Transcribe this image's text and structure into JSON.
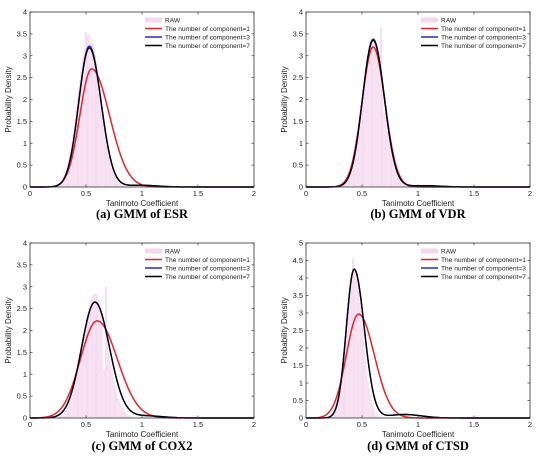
{
  "chart_data": [
    {
      "type": "area",
      "caption": "(a) GMM of ESR",
      "xlabel": "Tanimoto Coefficient",
      "ylabel": "Probability Density",
      "xlim": [
        0,
        2
      ],
      "ylim": [
        0,
        4
      ],
      "xticks": [
        "0",
        "0.5",
        "1",
        "1.5",
        "2"
      ],
      "yticks": [
        "0",
        "0.5",
        "1",
        "1.5",
        "2",
        "2.5",
        "3",
        "3.5",
        "4"
      ],
      "legend_position": "top-right",
      "raw": {
        "name": "RAW",
        "center": 0.53,
        "sigma": 0.1,
        "peak": 3.5,
        "spikes": [
          [
            0.5,
            3.55
          ],
          [
            0.55,
            3.3
          ]
        ]
      },
      "series": [
        {
          "name": "The number of component=1",
          "color": "#e8222a",
          "peak_x": 0.55,
          "peak_y": 2.7,
          "sigma_left": 0.105,
          "sigma_right": 0.16,
          "tail": 0
        },
        {
          "name": "The number of component=3",
          "color": "#1f2ccf",
          "peak_x": 0.53,
          "peak_y": 3.22,
          "sigma_left": 0.095,
          "sigma_right": 0.105,
          "tail": 0.04
        },
        {
          "name": "The number of component=7",
          "color": "#000000",
          "peak_x": 0.53,
          "peak_y": 3.18,
          "sigma_left": 0.095,
          "sigma_right": 0.105,
          "tail": 0.04
        }
      ]
    },
    {
      "type": "area",
      "caption": "(b) GMM of VDR",
      "xlabel": "Tanimoto Coefficient",
      "ylabel": "Probability Density",
      "xlim": [
        0,
        2
      ],
      "ylim": [
        0,
        4
      ],
      "xticks": [
        "0",
        "0.5",
        "1",
        "1.5",
        "2"
      ],
      "yticks": [
        "0",
        "0.5",
        "1",
        "1.5",
        "2",
        "2.5",
        "3",
        "3.5",
        "4"
      ],
      "legend_position": "top-right",
      "raw": {
        "name": "RAW",
        "center": 0.6,
        "sigma": 0.1,
        "peak": 3.3,
        "spikes": [
          [
            0.67,
            3.65
          ],
          [
            0.7,
            1.7
          ]
        ]
      },
      "series": [
        {
          "name": "The number of component=1",
          "color": "#e8222a",
          "peak_x": 0.6,
          "peak_y": 3.2,
          "sigma_left": 0.1,
          "sigma_right": 0.105,
          "tail": 0
        },
        {
          "name": "The number of component=3",
          "color": "#1f2ccf",
          "peak_x": 0.6,
          "peak_y": 3.38,
          "sigma_left": 0.095,
          "sigma_right": 0.1,
          "tail": 0.03
        },
        {
          "name": "The number of component=7",
          "color": "#000000",
          "peak_x": 0.6,
          "peak_y": 3.35,
          "sigma_left": 0.095,
          "sigma_right": 0.1,
          "tail": 0.03
        }
      ]
    },
    {
      "type": "area",
      "caption": "(c) GMM of COX2",
      "xlabel": "Tanimoto Coefficient",
      "ylabel": "Probability Density",
      "xlim": [
        0,
        2
      ],
      "ylim": [
        0,
        4
      ],
      "xticks": [
        "0",
        "0.5",
        "1",
        "1.5",
        "2"
      ],
      "yticks": [
        "0",
        "0.5",
        "1",
        "1.5",
        "2",
        "2.5",
        "3",
        "3.5",
        "4"
      ],
      "legend_position": "top-right",
      "raw": {
        "name": "RAW",
        "center": 0.58,
        "sigma": 0.11,
        "peak": 2.85,
        "spikes": [
          [
            0.68,
            3.0
          ],
          [
            0.66,
            1.1
          ]
        ]
      },
      "series": [
        {
          "name": "The number of component=1",
          "color": "#e8222a",
          "peak_x": 0.6,
          "peak_y": 2.22,
          "sigma_left": 0.15,
          "sigma_right": 0.18,
          "tail": 0
        },
        {
          "name": "The number of component=3",
          "color": "#1f2ccf",
          "peak_x": 0.58,
          "peak_y": 2.65,
          "sigma_left": 0.12,
          "sigma_right": 0.13,
          "tail": 0.05
        },
        {
          "name": "The number of component=7",
          "color": "#000000",
          "peak_x": 0.58,
          "peak_y": 2.65,
          "sigma_left": 0.12,
          "sigma_right": 0.13,
          "tail": 0.05
        }
      ]
    },
    {
      "type": "area",
      "caption": "(d) GMM of CTSD",
      "xlabel": "Tanimoto Coefficient",
      "ylabel": "Probability Density",
      "xlim": [
        0,
        2
      ],
      "ylim": [
        0,
        5
      ],
      "xticks": [
        "0",
        "0.5",
        "1",
        "1.5",
        "2"
      ],
      "yticks": [
        "0",
        "0.5",
        "1",
        "1.5",
        "2",
        "2.5",
        "3",
        "3.5",
        "4",
        "4.5",
        "5"
      ],
      "legend_position": "top-right",
      "raw": {
        "name": "RAW",
        "center": 0.43,
        "sigma": 0.075,
        "peak": 4.3,
        "spikes": [
          [
            0.42,
            4.55
          ]
        ]
      },
      "series": [
        {
          "name": "The number of component=1",
          "color": "#e8222a",
          "peak_x": 0.47,
          "peak_y": 2.97,
          "sigma_left": 0.11,
          "sigma_right": 0.14,
          "tail": 0
        },
        {
          "name": "The number of component=3",
          "color": "#1f2ccf",
          "peak_x": 0.43,
          "peak_y": 4.25,
          "sigma_left": 0.07,
          "sigma_right": 0.09,
          "tail": 0.1
        },
        {
          "name": "The number of component=7",
          "color": "#000000",
          "peak_x": 0.43,
          "peak_y": 4.25,
          "sigma_left": 0.07,
          "sigma_right": 0.09,
          "tail": 0.1
        }
      ]
    }
  ]
}
